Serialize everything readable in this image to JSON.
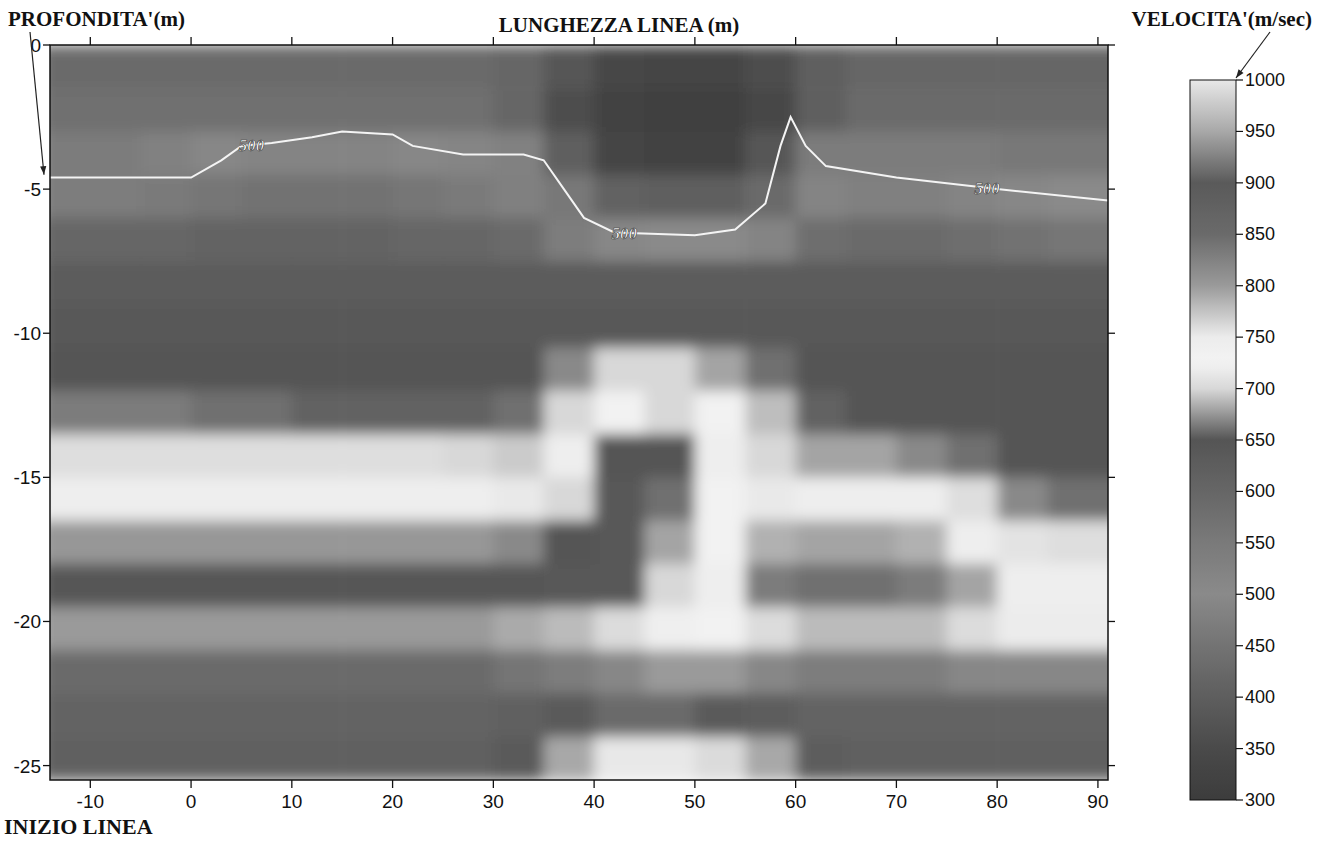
{
  "chart_data": {
    "type": "heatmap",
    "x_label": "LUNGHEZZA LINEA (m)",
    "y_label": "PROFONDITA'(m)",
    "annotation": "INIZIO LINEA",
    "xlim": [
      -14,
      91
    ],
    "ylim": [
      -25.5,
      0
    ],
    "xticks": [
      -10,
      0,
      10,
      20,
      30,
      40,
      50,
      60,
      70,
      80,
      90
    ],
    "yticks": [
      0,
      -5,
      -10,
      -15,
      -20,
      -25
    ],
    "grid": false,
    "cells": {
      "x": [
        -12.5,
        -7.5,
        -2.5,
        2.5,
        7.5,
        12.5,
        17.5,
        22.5,
        27.5,
        32.5,
        37.5,
        42.5,
        47.5,
        52.5,
        57.5,
        62.5,
        67.5,
        72.5,
        77.5,
        82.5,
        87.5,
        92.5
      ],
      "y": [
        -0.75,
        -2.25,
        -3.75,
        -5.25,
        -6.75,
        -8.25,
        -9.75,
        -11.25,
        -12.75,
        -14.25,
        -15.75,
        -17.25,
        -18.75,
        -20.25,
        -21.75,
        -23.25,
        -24.75
      ],
      "values": [
        [
          430,
          430,
          430,
          430,
          430,
          430,
          430,
          430,
          430,
          420,
          380,
          340,
          330,
          330,
          360,
          400,
          420,
          420,
          420,
          420,
          420,
          420
        ],
        [
          440,
          440,
          440,
          440,
          440,
          440,
          440,
          440,
          440,
          420,
          360,
          320,
          310,
          310,
          340,
          400,
          430,
          430,
          430,
          430,
          430,
          430
        ],
        [
          470,
          470,
          480,
          510,
          520,
          520,
          520,
          510,
          490,
          480,
          400,
          330,
          320,
          320,
          380,
          470,
          470,
          470,
          470,
          460,
          460,
          460
        ],
        [
          540,
          540,
          550,
          560,
          570,
          570,
          570,
          560,
          550,
          530,
          460,
          410,
          400,
          400,
          430,
          520,
          530,
          530,
          520,
          510,
          500,
          500
        ],
        [
          600,
          600,
          600,
          610,
          610,
          610,
          610,
          600,
          600,
          590,
          540,
          510,
          500,
          500,
          520,
          580,
          590,
          590,
          580,
          570,
          560,
          560
        ],
        [
          630,
          630,
          630,
          630,
          630,
          630,
          630,
          630,
          630,
          630,
          630,
          630,
          630,
          630,
          630,
          630,
          630,
          630,
          630,
          630,
          630,
          630
        ],
        [
          640,
          640,
          640,
          640,
          640,
          640,
          640,
          640,
          640,
          640,
          640,
          640,
          640,
          640,
          640,
          640,
          640,
          640,
          640,
          640,
          640,
          640
        ],
        [
          650,
          650,
          650,
          650,
          650,
          650,
          650,
          650,
          650,
          650,
          670,
          700,
          700,
          680,
          660,
          650,
          650,
          650,
          650,
          650,
          650,
          650
        ],
        [
          665,
          665,
          665,
          660,
          660,
          655,
          655,
          655,
          655,
          660,
          700,
          730,
          700,
          730,
          690,
          655,
          650,
          650,
          650,
          650,
          650,
          650
        ],
        [
          705,
          705,
          705,
          705,
          705,
          705,
          705,
          705,
          700,
          695,
          720,
          650,
          650,
          720,
          700,
          680,
          680,
          670,
          660,
          650,
          650,
          650
        ],
        [
          720,
          720,
          720,
          720,
          720,
          720,
          720,
          720,
          720,
          715,
          700,
          640,
          660,
          730,
          715,
          720,
          720,
          720,
          705,
          670,
          660,
          660
        ],
        [
          675,
          675,
          675,
          675,
          675,
          675,
          675,
          675,
          675,
          670,
          650,
          640,
          680,
          730,
          685,
          680,
          680,
          685,
          720,
          710,
          705,
          705
        ],
        [
          645,
          645,
          645,
          645,
          645,
          645,
          645,
          645,
          645,
          645,
          640,
          640,
          700,
          720,
          665,
          660,
          660,
          665,
          680,
          720,
          720,
          720
        ],
        [
          800,
          800,
          800,
          800,
          800,
          800,
          800,
          800,
          800,
          790,
          780,
          760,
          740,
          730,
          760,
          780,
          780,
          780,
          760,
          750,
          750,
          750
        ],
        [
          850,
          850,
          850,
          850,
          850,
          850,
          850,
          850,
          850,
          840,
          830,
          820,
          800,
          800,
          820,
          830,
          830,
          830,
          820,
          820,
          820,
          820
        ],
        [
          870,
          870,
          870,
          870,
          870,
          870,
          870,
          870,
          870,
          880,
          900,
          910,
          910,
          900,
          890,
          870,
          870,
          870,
          870,
          870,
          870,
          870
        ],
        [
          880,
          880,
          880,
          880,
          880,
          880,
          880,
          880,
          880,
          900,
          950,
          1000,
          1000,
          990,
          950,
          890,
          880,
          880,
          880,
          880,
          880,
          880
        ]
      ]
    },
    "colorbar": {
      "label": "VELOCITA'(m/sec)",
      "range": [
        300,
        1000
      ],
      "ticks": [
        300,
        350,
        400,
        450,
        500,
        550,
        600,
        650,
        700,
        750,
        800,
        850,
        900,
        950,
        1000
      ]
    },
    "contour": {
      "level": 500,
      "x": [
        -14,
        0,
        3,
        5,
        8,
        12,
        15,
        20,
        22,
        27,
        33,
        35,
        37,
        39,
        42,
        50,
        54,
        57,
        58.5,
        59.5,
        61,
        63,
        70,
        80,
        91
      ],
      "y": [
        -4.6,
        -4.6,
        -4.0,
        -3.5,
        -3.4,
        -3.2,
        -3.0,
        -3.1,
        -3.5,
        -3.8,
        -3.8,
        -4.0,
        -5.0,
        -6.0,
        -6.5,
        -6.6,
        -6.4,
        -5.5,
        -3.5,
        -2.5,
        -3.5,
        -4.2,
        -4.6,
        -5.0,
        -5.4
      ],
      "label_x": [
        6,
        43,
        79
      ]
    }
  }
}
